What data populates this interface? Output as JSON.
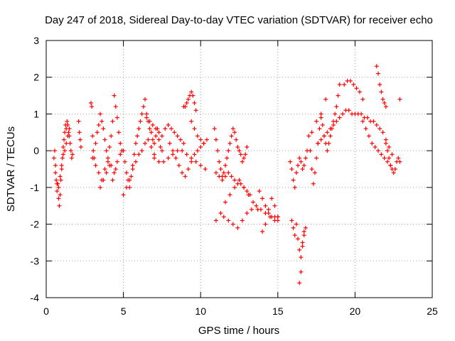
{
  "chart_data": {
    "type": "scatter",
    "title": "Day 247 of 2018, Sidereal Day-to-day VTEC variation (SDTVAR) for receiver echo",
    "xlabel": "GPS time / hours",
    "ylabel": "SDTVAR / TECUs",
    "xlim": [
      0,
      25
    ],
    "ylim": [
      -4,
      3
    ],
    "x_ticks": [
      0,
      5,
      10,
      15,
      20,
      25
    ],
    "y_ticks": [
      -4,
      -3,
      -2,
      -1,
      0,
      1,
      2,
      3
    ],
    "grid": true,
    "marker": "+",
    "color": "#ff0000",
    "series": [
      {
        "name": "SDTVAR",
        "x": [
          0.5,
          0.55,
          0.6,
          0.65,
          0.7,
          0.75,
          0.8,
          0.85,
          0.9,
          0.95,
          1.0,
          1.05,
          1.1,
          1.15,
          1.2,
          1.25,
          1.3,
          1.35,
          1.4,
          1.45,
          1.5,
          1.55,
          1.6,
          1.65,
          1.7,
          0.6,
          0.7,
          0.8,
          0.9,
          1.0,
          1.1,
          1.2,
          1.3,
          1.4,
          1.5,
          2.1,
          2.15,
          2.2,
          2.25,
          2.9,
          2.95,
          3.0,
          3.05,
          3.1,
          3.2,
          3.3,
          3.4,
          3.5,
          3.6,
          3.7,
          3.8,
          3.9,
          4.0,
          4.1,
          4.2,
          4.3,
          4.4,
          4.5,
          4.6,
          4.7,
          4.8,
          4.9,
          3.0,
          3.2,
          3.4,
          3.6,
          3.8,
          4.0,
          4.2,
          4.4,
          4.6,
          4.8,
          3.5,
          3.7,
          3.9,
          4.1,
          4.3,
          4.5,
          5.0,
          5.1,
          5.2,
          5.3,
          5.4,
          5.5,
          5.6,
          5.7,
          5.8,
          5.9,
          6.0,
          6.1,
          6.2,
          6.3,
          6.4,
          6.5,
          6.6,
          6.7,
          6.8,
          6.9,
          7.0,
          7.1,
          7.2,
          7.3,
          7.4,
          7.5,
          5.0,
          5.2,
          5.4,
          5.6,
          5.8,
          6.0,
          6.2,
          6.4,
          6.6,
          6.8,
          7.0,
          6.5,
          6.7,
          6.9,
          7.1,
          7.3,
          7.5,
          7.7,
          7.9,
          8.1,
          8.3,
          8.5,
          8.7,
          8.9,
          7.0,
          7.3,
          7.6,
          7.9,
          8.2,
          8.5,
          8.8,
          9.1,
          9.4,
          9.7,
          10.0,
          10.3,
          8.0,
          8.2,
          8.4,
          8.6,
          8.8,
          9.0,
          9.2,
          9.4,
          9.6,
          9.8,
          10.0,
          10.2,
          10.4,
          8.9,
          9.0,
          9.1,
          9.2,
          9.3,
          9.4,
          9.5,
          9.6,
          9.7,
          9.4,
          9.6,
          9.8,
          10.0,
          10.2,
          10.9,
          11.0,
          11.1,
          11.2,
          11.3,
          11.4,
          11.5,
          11.6,
          11.7,
          11.8,
          11.9,
          12.0,
          12.1,
          12.2,
          12.3,
          12.4,
          12.5,
          12.6,
          12.7,
          12.8,
          12.9,
          13.0,
          11.0,
          11.2,
          11.4,
          11.6,
          11.8,
          12.0,
          12.2,
          12.4,
          12.6,
          12.8,
          13.0,
          13.2,
          11.0,
          11.3,
          11.6,
          11.9,
          12.2,
          12.5,
          12.8,
          13.1,
          13.4,
          13.7,
          11.5,
          11.8,
          12.1,
          12.4,
          12.7,
          13.0,
          13.3,
          13.6,
          13.9,
          14.2,
          14.5,
          14.8,
          15.0,
          13.8,
          14.0,
          14.2,
          14.4,
          14.6,
          14.8,
          15.0,
          14.0,
          14.2,
          14.4,
          14.6,
          14.8,
          15.0,
          15.8,
          15.9,
          16.0,
          16.1,
          16.2,
          16.3,
          16.4,
          16.5,
          16.6,
          16.7,
          16.8,
          16.9,
          16.2,
          16.3,
          16.4,
          16.5,
          16.6,
          16.7,
          15.9,
          16.0,
          16.1,
          16.4,
          16.5,
          16.6,
          16.7,
          16.8,
          17.0,
          17.1,
          17.2,
          17.3,
          17.4,
          17.5,
          17.6,
          17.7,
          17.8,
          17.9,
          18.0,
          18.1,
          18.2,
          18.3,
          18.4,
          18.5,
          18.6,
          18.7,
          18.8,
          18.9,
          19.0,
          17.6,
          17.8,
          18.0,
          18.2,
          18.4,
          18.6,
          18.8,
          19.0,
          19.2,
          19.4,
          19.6,
          19.8,
          20.0,
          20.2,
          20.4,
          20.6,
          20.8,
          21.0,
          21.2,
          21.4,
          21.6,
          21.8,
          22.0,
          22.2,
          22.4,
          19.3,
          19.5,
          19.7,
          19.9,
          20.1,
          20.3,
          20.5,
          20.5,
          20.7,
          20.9,
          21.1,
          21.3,
          21.5,
          21.7,
          21.9,
          22.1,
          22.3,
          21.4,
          21.5,
          21.6,
          21.7,
          21.8,
          21.9,
          22.0,
          22.0,
          22.1,
          22.2,
          22.3,
          22.4,
          22.5,
          22.6,
          22.7,
          22.8,
          22.9,
          17.2,
          17.5,
          17.8,
          18.1,
          22.9
        ],
        "y": [
          -0.2,
          0.0,
          -0.4,
          -0.8,
          -1.1,
          -0.9,
          -1.3,
          -1.5,
          -1.2,
          -0.8,
          -0.5,
          -0.2,
          0.1,
          0.3,
          0.5,
          0.7,
          0.6,
          0.8,
          0.7,
          0.5,
          0.4,
          0.2,
          0.0,
          -0.2,
          -0.1,
          -0.6,
          -0.9,
          -1.0,
          -0.7,
          -0.4,
          -0.1,
          0.0,
          0.2,
          0.4,
          0.6,
          0.8,
          0.5,
          0.3,
          0.1,
          1.3,
          1.2,
          0.4,
          0.0,
          -0.2,
          0.2,
          0.5,
          0.7,
          1.0,
          0.8,
          0.6,
          0.3,
          0.0,
          -0.3,
          0.1,
          0.4,
          0.8,
          1.5,
          1.2,
          0.9,
          0.5,
          0.2,
          0.0,
          -0.2,
          -0.4,
          -0.6,
          -0.8,
          -0.5,
          -0.2,
          -0.4,
          -0.6,
          -0.3,
          -0.1,
          -1.0,
          -0.8,
          -0.6,
          -0.4,
          -0.8,
          -0.5,
          0.0,
          -0.3,
          -0.6,
          -0.8,
          -1.0,
          -0.7,
          -0.4,
          -0.1,
          0.2,
          0.4,
          0.6,
          0.8,
          1.0,
          1.2,
          1.4,
          1.0,
          0.8,
          0.6,
          0.5,
          0.3,
          0.2,
          0.4,
          0.6,
          0.3,
          0.1,
          0.0,
          -1.2,
          -1.0,
          -0.8,
          -0.5,
          -0.3,
          -0.1,
          0.0,
          0.2,
          0.3,
          0.1,
          -0.1,
          0.9,
          0.8,
          0.7,
          0.6,
          0.5,
          0.4,
          0.6,
          0.7,
          0.6,
          0.5,
          0.4,
          0.3,
          0.2,
          -0.2,
          -0.3,
          -0.3,
          -0.2,
          -0.1,
          0.0,
          0.0,
          -0.1,
          -0.2,
          -0.3,
          -0.4,
          -0.5,
          0.2,
          0.0,
          -0.2,
          -0.4,
          -0.6,
          -0.7,
          -0.5,
          -0.3,
          -0.1,
          0.0,
          0.1,
          0.2,
          0.3,
          1.2,
          1.2,
          1.3,
          1.4,
          1.5,
          1.6,
          1.5,
          1.3,
          1.1,
          0.8,
          0.6,
          0.4,
          0.3,
          0.2,
          0.6,
          0.3,
          0.0,
          -0.3,
          -0.5,
          -0.7,
          -0.6,
          -0.4,
          -0.2,
          0.0,
          0.2,
          0.4,
          0.6,
          0.5,
          0.3,
          0.1,
          0.0,
          -0.1,
          -0.3,
          -0.2,
          -0.1,
          0.1,
          -0.6,
          -0.7,
          -0.8,
          -0.7,
          -0.6,
          -0.7,
          -0.8,
          -0.9,
          -0.9,
          -1.0,
          -1.1,
          -1.2,
          -1.9,
          -1.7,
          -1.4,
          -1.2,
          -1.0,
          -0.8,
          -1.0,
          -1.2,
          -1.4,
          -1.6,
          -1.8,
          -1.9,
          -2.0,
          -2.1,
          -1.9,
          -1.7,
          -1.6,
          -1.5,
          -1.6,
          -1.7,
          -1.8,
          -1.8,
          -1.9,
          -1.1,
          -1.3,
          -1.5,
          -1.7,
          -1.8,
          -1.9,
          -1.8,
          -2.2,
          -2.0,
          -1.6,
          -1.3,
          -1.5,
          -1.8,
          -0.3,
          -0.5,
          -0.8,
          -1.0,
          -0.6,
          -0.4,
          -0.2,
          -0.3,
          -0.5,
          -0.4,
          -0.2,
          0.0,
          -2.0,
          -2.4,
          -2.7,
          -2.9,
          -2.6,
          -2.2,
          -1.9,
          -2.1,
          -2.3,
          -3.6,
          -3.3,
          -2.5,
          -2.3,
          -2.1,
          0.4,
          0.0,
          -0.5,
          -0.9,
          -0.6,
          -0.2,
          0.2,
          0.6,
          0.9,
          0.7,
          0.4,
          0.2,
          0.0,
          0.2,
          0.4,
          0.6,
          0.8,
          1.0,
          1.2,
          1.5,
          1.8,
          0.2,
          0.3,
          0.4,
          0.5,
          0.6,
          0.7,
          0.8,
          0.9,
          1.0,
          1.1,
          1.1,
          1.0,
          1.0,
          1.0,
          1.0,
          0.9,
          0.9,
          0.8,
          0.8,
          0.7,
          0.6,
          0.5,
          0.3,
          0.1,
          -0.1,
          1.8,
          1.9,
          1.9,
          1.8,
          1.7,
          1.6,
          1.4,
          0.8,
          0.6,
          0.4,
          0.2,
          0.1,
          0.0,
          -0.1,
          -0.2,
          -0.3,
          -0.4,
          2.3,
          2.1,
          1.8,
          1.6,
          1.4,
          1.3,
          1.2,
          0.2,
          0.0,
          -0.2,
          -0.4,
          -0.5,
          -0.6,
          -0.5,
          -0.3,
          -0.2,
          -0.3,
          0.5,
          0.8,
          1.0,
          1.4,
          1.4
        ]
      }
    ]
  }
}
